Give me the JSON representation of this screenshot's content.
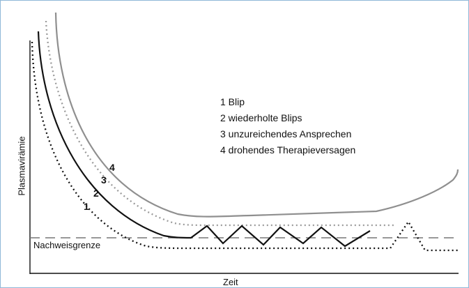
{
  "axes": {
    "y_label": "Plasmavirämie",
    "x_label": "Zeit"
  },
  "threshold": {
    "label": "Nachweisgrenze"
  },
  "legend": [
    "1 Blip",
    "2 wiederholte Blips",
    "3 unzureichendes Ansprechen",
    "4 drohendes Therapieversagen"
  ],
  "curve_numbers": [
    "1",
    "2",
    "3",
    "4"
  ],
  "colors": {
    "curve1": "#111111",
    "curve2": "#111111",
    "curve3": "#9a9a9a",
    "curve4": "#8f8f8f",
    "threshold": "#777777",
    "frame": "#8fb8d8"
  }
}
